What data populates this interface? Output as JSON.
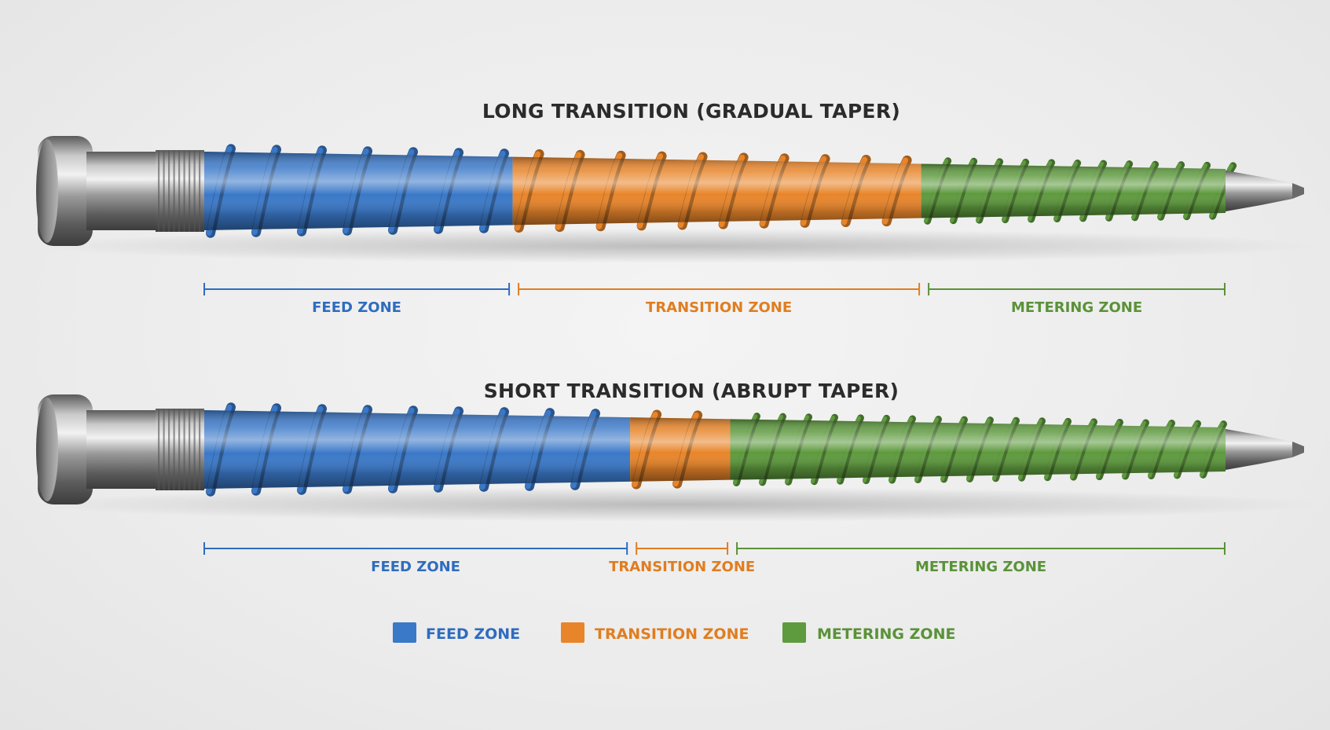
{
  "colors": {
    "feed": "#3a78c8",
    "transition": "#e8852a",
    "metering": "#5e9a3e"
  },
  "diagrams": [
    {
      "title": "LONG TRANSITION (GRADUAL TAPER)",
      "zones": [
        {
          "key": "feed",
          "label": "FEED ZONE",
          "fraction": 0.302
        },
        {
          "key": "transition",
          "label": "TRANSITION ZONE",
          "fraction": 0.4
        },
        {
          "key": "metering",
          "label": "METERING ZONE",
          "fraction": 0.298
        }
      ]
    },
    {
      "title": "SHORT TRANSITION (ABRUPT TAPER)",
      "zones": [
        {
          "key": "feed",
          "label": "FEED ZONE",
          "fraction": 0.417
        },
        {
          "key": "transition",
          "label": "TRANSITION ZONE",
          "fraction": 0.098
        },
        {
          "key": "metering",
          "label": "METERING ZONE",
          "fraction": 0.485
        }
      ]
    }
  ],
  "legend": [
    {
      "key": "feed",
      "label": "FEED ZONE"
    },
    {
      "key": "transition",
      "label": "TRANSITION ZONE"
    },
    {
      "key": "metering",
      "label": "METERING ZONE"
    }
  ]
}
